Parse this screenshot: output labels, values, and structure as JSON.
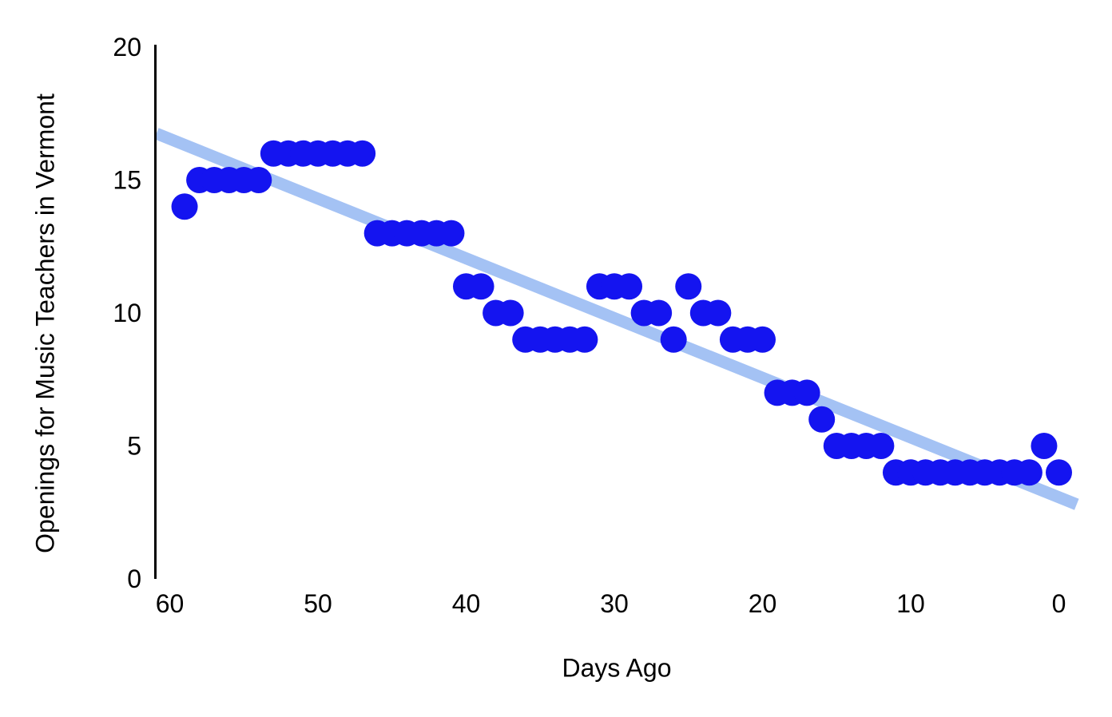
{
  "page": {
    "background_color": "#ffffff"
  },
  "chart_data": {
    "type": "scatter",
    "title": "",
    "xlabel": "Days Ago",
    "ylabel": "Openings for Music Teachers in Vermont",
    "grid": false,
    "legend": false,
    "point_color": "#1414f0",
    "trend_color": "#a4c2f4",
    "axis_color": "#000000",
    "x_axis": {
      "direction": "reversed",
      "ticks": [
        60,
        50,
        40,
        30,
        20,
        10,
        0
      ],
      "range": [
        61.5,
        -2.5
      ]
    },
    "y_axis": {
      "ticks": [
        0,
        5,
        10,
        15,
        20
      ],
      "range": [
        0,
        20
      ]
    },
    "points": [
      [
        59,
        14
      ],
      [
        58,
        15
      ],
      [
        57,
        15
      ],
      [
        56,
        15
      ],
      [
        55,
        15
      ],
      [
        54,
        15
      ],
      [
        53,
        16
      ],
      [
        52,
        16
      ],
      [
        51,
        16
      ],
      [
        50,
        16
      ],
      [
        49,
        16
      ],
      [
        48,
        16
      ],
      [
        47,
        16
      ],
      [
        46,
        13
      ],
      [
        45,
        13
      ],
      [
        44,
        13
      ],
      [
        43,
        13
      ],
      [
        42,
        13
      ],
      [
        41,
        13
      ],
      [
        40,
        11
      ],
      [
        39,
        11
      ],
      [
        38,
        10
      ],
      [
        37,
        10
      ],
      [
        36,
        9
      ],
      [
        35,
        9
      ],
      [
        34,
        9
      ],
      [
        33,
        9
      ],
      [
        32,
        9
      ],
      [
        31,
        11
      ],
      [
        30,
        11
      ],
      [
        29,
        11
      ],
      [
        28,
        10
      ],
      [
        27,
        10
      ],
      [
        26,
        9
      ],
      [
        25,
        11
      ],
      [
        24,
        10
      ],
      [
        23,
        10
      ],
      [
        22,
        9
      ],
      [
        21,
        9
      ],
      [
        20,
        9
      ],
      [
        19,
        7
      ],
      [
        18,
        7
      ],
      [
        17,
        7
      ],
      [
        16,
        6
      ],
      [
        15,
        5
      ],
      [
        14,
        5
      ],
      [
        13,
        5
      ],
      [
        12,
        5
      ],
      [
        11,
        4
      ],
      [
        10,
        4
      ],
      [
        9,
        4
      ],
      [
        8,
        4
      ],
      [
        7,
        4
      ],
      [
        6,
        4
      ],
      [
        5,
        4
      ],
      [
        4,
        4
      ],
      [
        3,
        4
      ],
      [
        2,
        4
      ],
      [
        1,
        5
      ],
      [
        0,
        4
      ]
    ],
    "trendline": {
      "type": "linear",
      "x_start": 60.9,
      "y_start": 16.75,
      "x_end": -1.2,
      "y_end": 2.8
    }
  }
}
